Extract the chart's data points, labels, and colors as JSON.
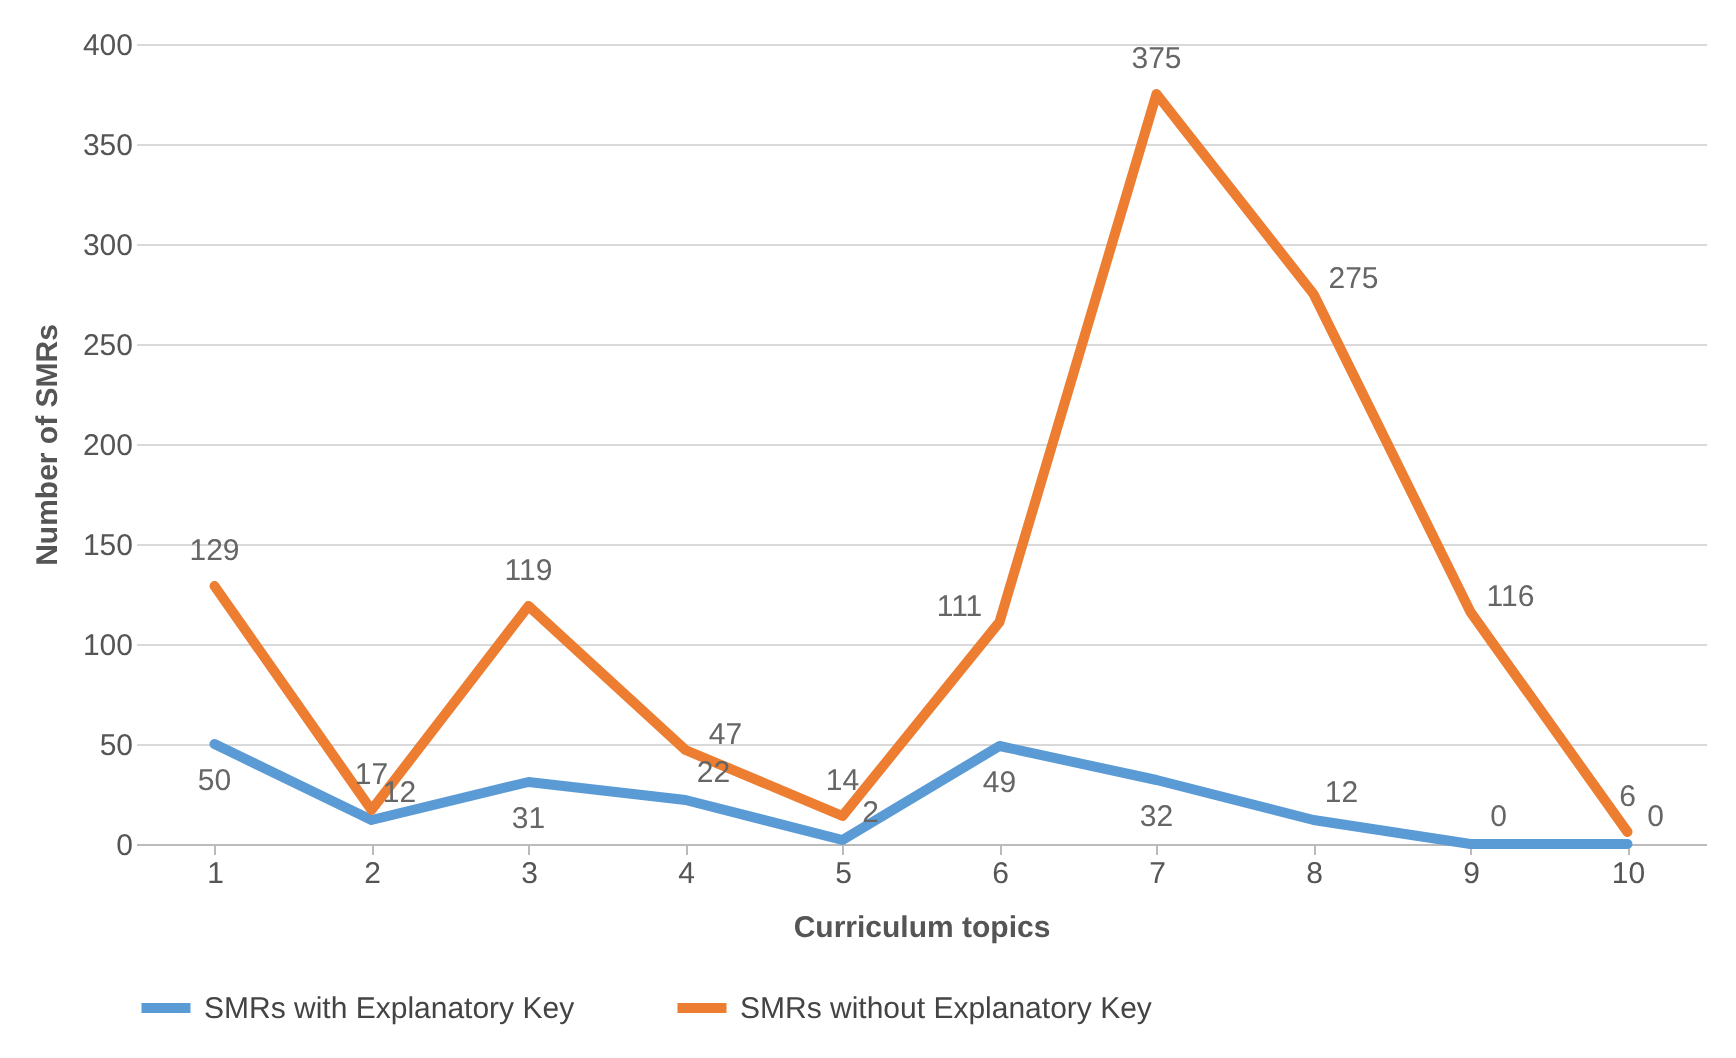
{
  "chart_data": {
    "type": "line",
    "xlabel": "Curriculum topics",
    "ylabel": "Number of SMRs",
    "categories": [
      "1",
      "2",
      "3",
      "4",
      "5",
      "6",
      "7",
      "8",
      "9",
      "10"
    ],
    "series": [
      {
        "name": "SMRs with Explanatory Key",
        "color": "#5b9bd5",
        "values": [
          50,
          12,
          31,
          22,
          2,
          49,
          32,
          12,
          0,
          0
        ]
      },
      {
        "name": "SMRs without Explanatory Key",
        "color": "#ed7d31",
        "values": [
          129,
          17,
          119,
          47,
          14,
          111,
          375,
          275,
          116,
          6
        ]
      }
    ],
    "ylim": [
      0,
      400
    ],
    "yticks": [
      0,
      50,
      100,
      150,
      200,
      250,
      300,
      350,
      400
    ],
    "grid": "y",
    "legend": "bottom",
    "data_labels": true
  }
}
